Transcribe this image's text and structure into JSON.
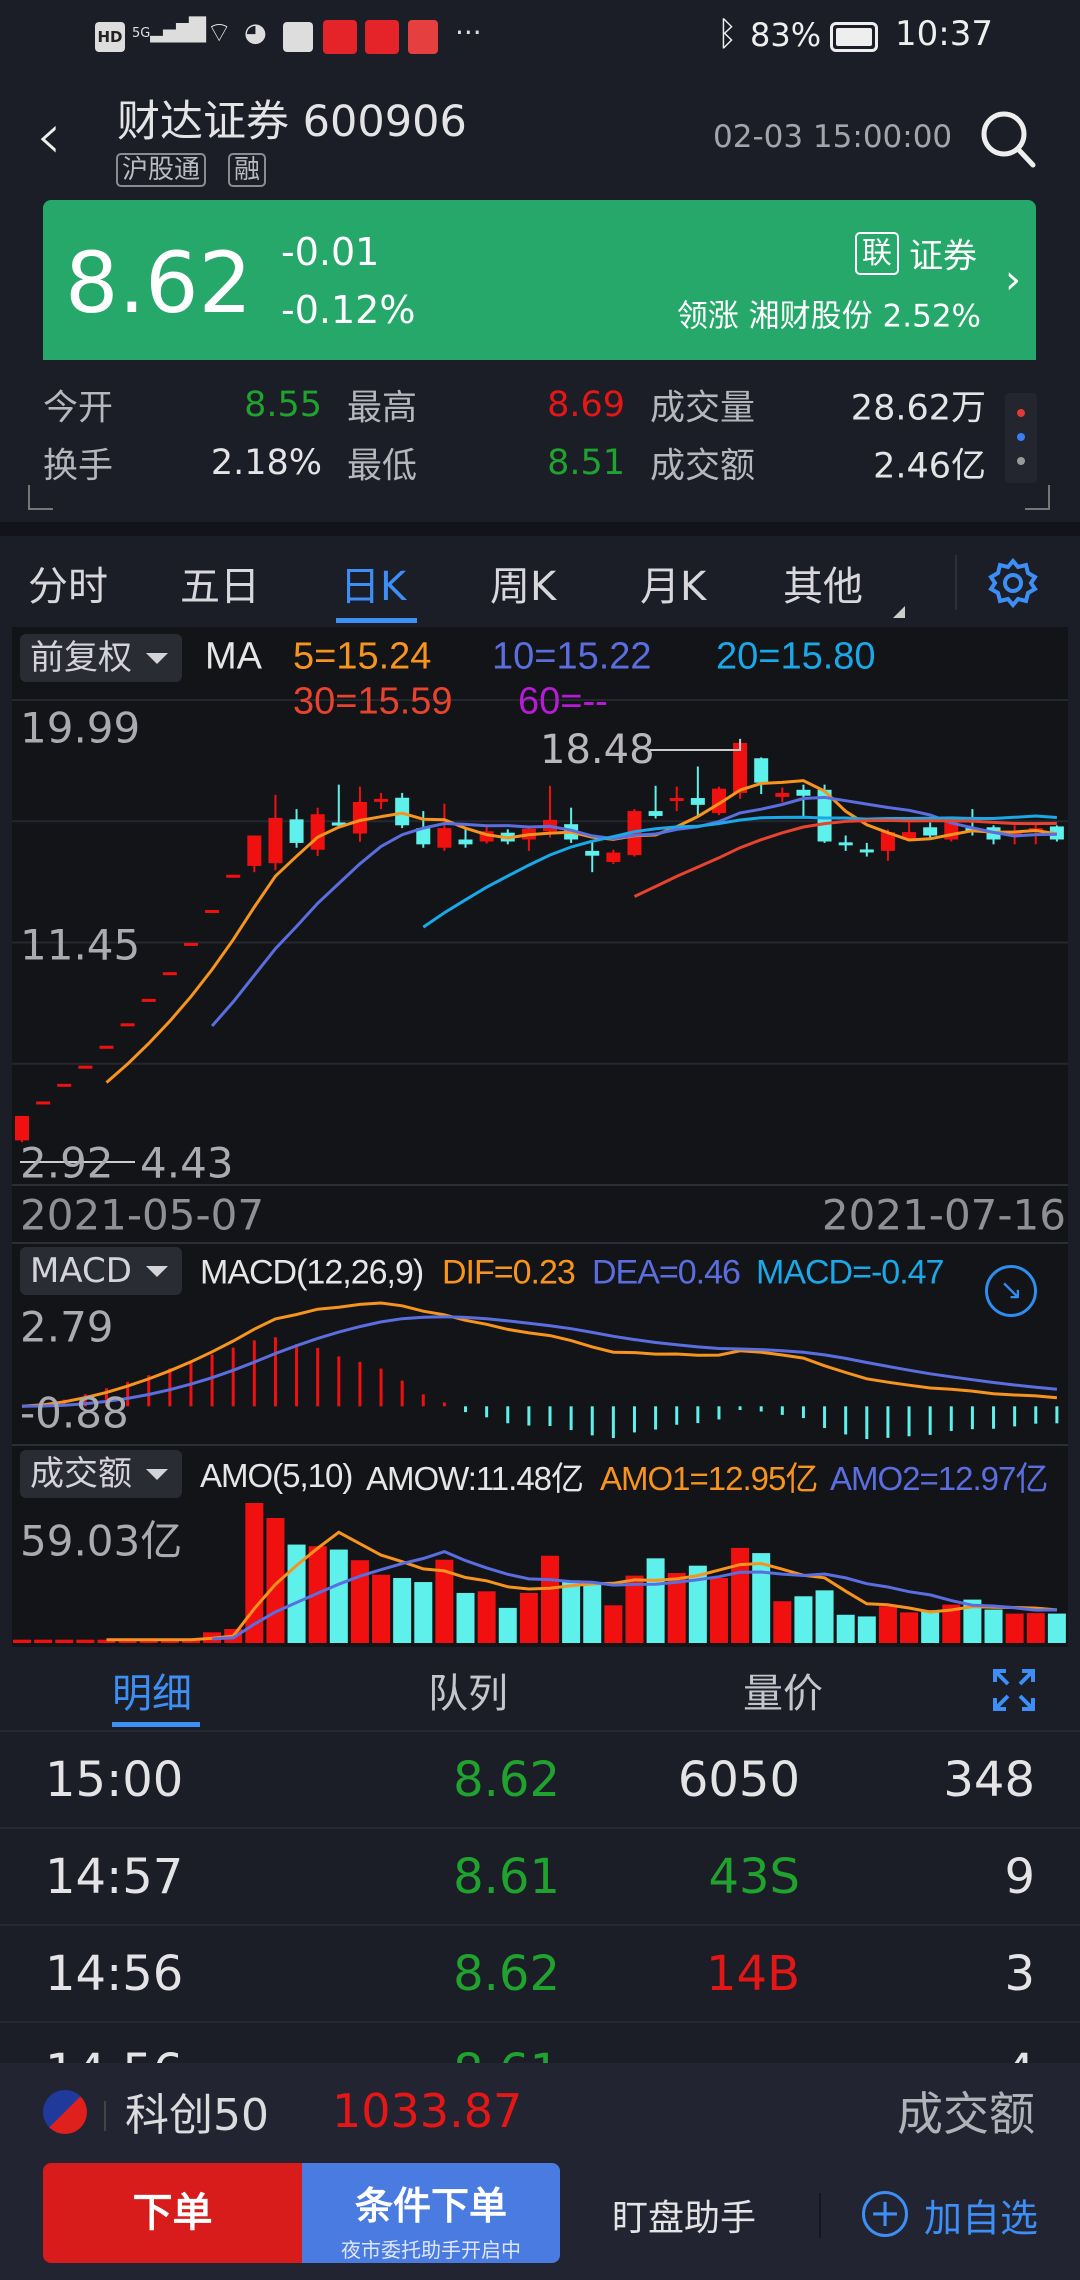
{
  "status_bar": {
    "left_icons": [
      "hd-icon",
      "5g-signal-icon",
      "wifi-icon",
      "wechat-icon",
      "notification-icon",
      "toutiao-icon",
      "app-icon",
      "book-icon",
      "more-icon"
    ],
    "battery": "83%",
    "time": "10:37"
  },
  "header": {
    "title": "财达证券 600906",
    "tags": [
      "沪股通",
      "融"
    ],
    "datetime": "02-03 15:00:00"
  },
  "quote": {
    "price": "8.62",
    "change": "-0.01",
    "change_pct": "-0.12%",
    "sector_badge": "联",
    "sector": "证券",
    "leader": "领涨 湘财股份 2.52%",
    "color": "#26a86a"
  },
  "stats": [
    {
      "label": "今开",
      "value": "8.55",
      "color": "green"
    },
    {
      "label": "最高",
      "value": "8.69",
      "color": "red"
    },
    {
      "label": "成交量",
      "value": "28.62万",
      "color": "white"
    },
    {
      "label": "换手",
      "value": "2.18%",
      "color": "white"
    },
    {
      "label": "最低",
      "value": "8.51",
      "color": "green"
    },
    {
      "label": "成交额",
      "value": "2.46亿",
      "color": "white"
    }
  ],
  "period_tabs": [
    {
      "label": "分时"
    },
    {
      "label": "五日"
    },
    {
      "label": "日K",
      "active": true
    },
    {
      "label": "周K"
    },
    {
      "label": "月K"
    },
    {
      "label": "其他"
    }
  ],
  "main_chart": {
    "adjust": "前复权",
    "ma_label": "MA",
    "ma5": "5=15.24",
    "ma10": "10=15.22",
    "ma20": "20=15.80",
    "ma30": "30=15.59",
    "ma60": "60=--",
    "y_top": "19.99",
    "y_mid": "11.45",
    "y_bottom": "2.92",
    "high_marker": "18.48",
    "low_marker": "4.43",
    "date_start": "2021-05-07",
    "date_end": "2021-07-16"
  },
  "macd": {
    "selector": "MACD",
    "params": "MACD(12,26,9)",
    "dif": "DIF=0.23",
    "dea": "DEA=0.46",
    "macd": "MACD=-0.47",
    "y_top": "2.79",
    "y_bottom": "-0.88"
  },
  "volume": {
    "selector": "成交额",
    "params": "AMO(5,10)",
    "amow": "AMOW:11.48亿",
    "amo1": "AMO1=12.95亿",
    "amo2": "AMO2=12.97亿",
    "y_top": "59.03亿"
  },
  "chart_data": {
    "type": "candlestick",
    "x_range": [
      "2021-05-07",
      "2021-07-16"
    ],
    "ylim": [
      2.92,
      19.99
    ],
    "colors": {
      "up": "#f01010",
      "down": "#5ef0ea",
      "ma5": "#f7941d",
      "ma10": "#5b6ee0",
      "ma20": "#1aa8e8",
      "ma30": "#e8432e"
    },
    "candles": [
      [
        4.49,
        5.35,
        5.35,
        4.43
      ],
      [
        5.84,
        5.86,
        5.86,
        5.84
      ],
      [
        6.46,
        6.48,
        6.48,
        6.46
      ],
      [
        7.1,
        7.12,
        7.12,
        7.1
      ],
      [
        7.8,
        7.82,
        7.82,
        7.8
      ],
      [
        8.59,
        8.61,
        8.61,
        8.59
      ],
      [
        9.45,
        9.47,
        9.47,
        9.45
      ],
      [
        10.39,
        10.41,
        10.41,
        10.39
      ],
      [
        11.42,
        11.44,
        11.44,
        11.42
      ],
      [
        12.58,
        12.6,
        12.6,
        12.58
      ],
      [
        13.82,
        13.84,
        13.84,
        13.82
      ],
      [
        14.15,
        15.22,
        15.22,
        13.93
      ],
      [
        14.25,
        15.84,
        16.65,
        14.0
      ],
      [
        15.79,
        14.96,
        16.15,
        14.79
      ],
      [
        14.72,
        15.97,
        16.2,
        14.5
      ],
      [
        15.68,
        15.57,
        17.01,
        15.51
      ],
      [
        15.29,
        16.4,
        16.94,
        15.0
      ],
      [
        16.42,
        16.51,
        16.72,
        16.15
      ],
      [
        16.55,
        15.58,
        16.72,
        15.48
      ],
      [
        15.48,
        14.91,
        16.08,
        14.79
      ],
      [
        14.79,
        15.48,
        16.34,
        14.68
      ],
      [
        15.08,
        14.91,
        15.48,
        14.79
      ],
      [
        15.01,
        15.37,
        15.54,
        14.94
      ],
      [
        15.32,
        15.01,
        15.44,
        14.91
      ],
      [
        15.08,
        15.46,
        15.54,
        14.68
      ],
      [
        15.37,
        15.77,
        16.97,
        15.15
      ],
      [
        15.62,
        15.08,
        16.2,
        14.96
      ],
      [
        14.68,
        14.51,
        15.01,
        13.93
      ],
      [
        14.29,
        14.62,
        14.72,
        14.22
      ],
      [
        14.53,
        16.08,
        16.15,
        14.48
      ],
      [
        16.08,
        15.91,
        16.97,
        15.82
      ],
      [
        16.48,
        16.54,
        16.94,
        16.08
      ],
      [
        16.54,
        16.3,
        17.65,
        15.91
      ],
      [
        16.01,
        16.87,
        16.94,
        15.94
      ],
      [
        16.72,
        18.48,
        18.48,
        16.51
      ],
      [
        17.94,
        17.08,
        17.97,
        16.68
      ],
      [
        16.58,
        16.72,
        16.91,
        16.39
      ],
      [
        16.83,
        16.62,
        17.01,
        15.82
      ],
      [
        16.83,
        15.01,
        17.01,
        14.96
      ],
      [
        14.98,
        14.94,
        15.22,
        14.68
      ],
      [
        14.73,
        14.69,
        14.96,
        14.48
      ],
      [
        14.68,
        15.34,
        15.44,
        14.33
      ],
      [
        15.08,
        15.34,
        15.68,
        15.01
      ],
      [
        15.51,
        15.22,
        15.68,
        15.08
      ],
      [
        15.08,
        15.68,
        15.87,
        15.01
      ],
      [
        15.48,
        15.37,
        16.15,
        15.22
      ],
      [
        15.51,
        15.08,
        15.58,
        14.91
      ],
      [
        15.25,
        15.37,
        15.58,
        14.91
      ],
      [
        15.37,
        15.48,
        15.65,
        14.91
      ],
      [
        15.54,
        15.08,
        15.58,
        15.01
      ]
    ],
    "candle_fields": [
      "open",
      "close",
      "high",
      "low"
    ],
    "amount_yi": [
      1.4,
      1.4,
      1.4,
      1.4,
      1.4,
      1.4,
      1.4,
      1.4,
      1.4,
      4.5,
      5.9,
      59.03,
      52.7,
      41.5,
      40.8,
      39.4,
      34.9,
      28.8,
      27.4,
      25.7,
      35.1,
      21.1,
      21.8,
      14.8,
      21.1,
      36.8,
      26.4,
      25.6,
      15.9,
      28.4,
      35.7,
      29.5,
      32.6,
      27.4,
      40.1,
      37.9,
      17.6,
      19.7,
      22.2,
      11.9,
      11.2,
      15.5,
      12.9,
      13.8,
      16.2,
      18.3,
      14.1,
      12.4,
      12.6,
      12.4
    ]
  },
  "detail_tabs": [
    {
      "label": "明细",
      "active": true
    },
    {
      "label": "队列"
    },
    {
      "label": "量价"
    }
  ],
  "trades": [
    {
      "time": "15:00",
      "price": "8.62",
      "volume": "6050",
      "volume_color": "white",
      "count": "348"
    },
    {
      "time": "14:57",
      "price": "8.61",
      "volume": "43S",
      "volume_color": "green",
      "count": "9"
    },
    {
      "time": "14:56",
      "price": "8.62",
      "volume": "14B",
      "volume_color": "red",
      "count": "3"
    },
    {
      "time": "14:56",
      "price": "8.61",
      "volume": "",
      "volume_color": "green",
      "count": "4"
    }
  ],
  "index_bar": {
    "name": "科创50",
    "value": "1033.87",
    "right_label": "成交额"
  },
  "actions": {
    "order": "下单",
    "conditional": "条件下单",
    "conditional_sub": "夜市委托助手开启中",
    "monitor": "盯盘助手",
    "add_watch": "加自选"
  }
}
